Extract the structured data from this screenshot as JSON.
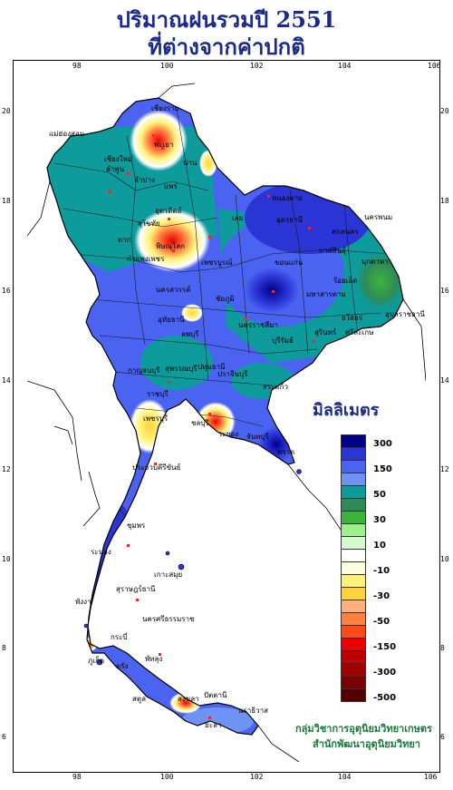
{
  "title": {
    "line1": "ปริมาณฝนรวมปี  2551",
    "line2": "ที่ต่างจากค่าปกติ"
  },
  "axes": {
    "longitude_ticks": [
      "98",
      "100",
      "102",
      "104",
      "106"
    ],
    "latitude_ticks": [
      "20",
      "18",
      "16",
      "14",
      "12",
      "10",
      "8",
      "6"
    ]
  },
  "legend": {
    "unit": "มิลลิเมตร",
    "classes": [
      {
        "label": "300",
        "color": "#00008b"
      },
      {
        "label": "",
        "color": "#2b35d6"
      },
      {
        "label": "150",
        "color": "#4a63f0"
      },
      {
        "label": "",
        "color": "#6f93f4"
      },
      {
        "label": "50",
        "color": "#0d9b9b"
      },
      {
        "label": "",
        "color": "#2e8b57"
      },
      {
        "label": "30",
        "color": "#3cb43c"
      },
      {
        "label": "",
        "color": "#9ef08f"
      },
      {
        "label": "10",
        "color": "#d6f7cf"
      },
      {
        "label": "",
        "color": "#ffffff"
      },
      {
        "label": "-10",
        "color": "#ffffe0"
      },
      {
        "label": "",
        "color": "#fff27a"
      },
      {
        "label": "-30",
        "color": "#ffd13a"
      },
      {
        "label": "",
        "color": "#ffb07a"
      },
      {
        "label": "-50",
        "color": "#ff8040"
      },
      {
        "label": "",
        "color": "#ff4a1a"
      },
      {
        "label": "-150",
        "color": "#ee0000"
      },
      {
        "label": "",
        "color": "#c00000"
      },
      {
        "label": "-300",
        "color": "#a00000"
      },
      {
        "label": "",
        "color": "#7a0000"
      },
      {
        "label": "-500",
        "color": "#550000"
      }
    ]
  },
  "places": [
    "เชียงราย",
    "เชียงใหม่",
    "แม่ฮ่องสอน",
    "น่าน",
    "พะเยา",
    "ลำพูน",
    "แพร่",
    "ลำปาง",
    "อุตรดิตถ์",
    "ตาก",
    "สุโขทัย",
    "พิษณุโลก",
    "เลย",
    "หนองคาย",
    "อุดรธานี",
    "สกลนคร",
    "นครพนม",
    "มุกดาหาร",
    "ขอนแก่น",
    "กาฬสินธุ์",
    "ร้อยเอ็ด",
    "เพชรบูรณ์",
    "กำแพงเพชร",
    "นครสวรรค์",
    "ชัยภูมิ",
    "มหาสารคาม",
    "ยโสธร",
    "อุบลราชธานี",
    "อุทัยธานี",
    "ลพบุรี",
    "นครราชสีมา",
    "บุรีรัมย์",
    "สุรินทร์",
    "ศรีสะเกษ",
    "กาญจนบุรี",
    "สุพรรณบุรี",
    "ปทุมธานี",
    "ปราจีนบุรี",
    "สระแก้ว",
    "ราชบุรี",
    "ชลบุรี",
    "ระยอง",
    "จันทบุรี",
    "ตราด",
    "เพชรบุรี",
    "ประจวบคีรีขันธ์",
    "ชุมพร",
    "ระนอง",
    "สุราษฎร์ธานี",
    "นครศรีธรรมราช",
    "พังงา",
    "ภูเก็ต",
    "กระบี่",
    "ตรัง",
    "พัทลุง",
    "สตูล",
    "สงขลา",
    "ปัตตานี",
    "ยะลา",
    "นราธิวาส",
    "เกาะสมุย"
  ],
  "credit": {
    "line1": "กลุ่มวิชาการอุตุนิยมวิทยาเกษตร",
    "line2": "สำนักพัฒนาอุตุนิยมวิทยา"
  }
}
